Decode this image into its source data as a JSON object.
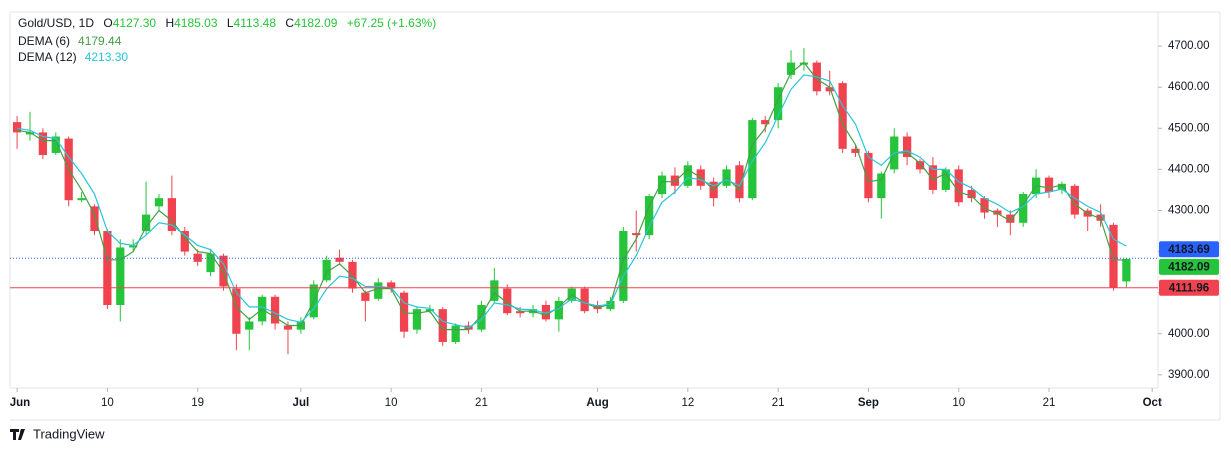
{
  "chart_data": {
    "type": "candlestick",
    "title": "Gold/USD, 1D",
    "header_labels": [
      "O",
      "H",
      "L",
      "C"
    ],
    "change": "+67.25 (+1.63%)",
    "up_color": "#26c43a",
    "down_color": "#f0434f",
    "xlim": [
      -0.55,
      88.45
    ],
    "xticks": [
      {
        "value": 0,
        "label": "Jun"
      },
      {
        "value": 7,
        "label": "10"
      },
      {
        "value": 14,
        "label": "19"
      },
      {
        "value": 22,
        "label": "Jul"
      },
      {
        "value": 29,
        "label": "10"
      },
      {
        "value": 36,
        "label": "21"
      },
      {
        "value": 45,
        "label": "Aug"
      },
      {
        "value": 52,
        "label": "12"
      },
      {
        "value": 59,
        "label": "21"
      },
      {
        "value": 66,
        "label": "Sep"
      },
      {
        "value": 73,
        "label": "10"
      },
      {
        "value": 80,
        "label": "21"
      },
      {
        "value": 88,
        "label": "Oct"
      }
    ],
    "ylim": [
      3868,
      4783
    ],
    "yticks": [
      {
        "value": 3900,
        "label": "3900.00"
      },
      {
        "value": 4000,
        "label": "4000.00"
      },
      {
        "value": 4100,
        "label": "4100.00"
      },
      {
        "value": 4200,
        "label": "4200.00"
      },
      {
        "value": 4300,
        "label": "4300.00"
      },
      {
        "value": 4400,
        "label": "4400.00"
      },
      {
        "value": 4500,
        "label": "4500.00"
      },
      {
        "value": 4600,
        "label": "4600.00"
      },
      {
        "value": 4700,
        "label": "4700.00"
      }
    ],
    "open": [
      4515,
      4485,
      4490,
      4440,
      4475,
      4325,
      4310,
      4250,
      4070,
      4210,
      4250,
      4310,
      4330,
      4250,
      4195,
      4150,
      4190,
      4110,
      4010,
      4030,
      4090,
      4020,
      4010,
      4040,
      4130,
      4185,
      4175,
      4100,
      4085,
      4125,
      4100,
      4010,
      4055,
      4060,
      3980,
      4020,
      4010,
      4080,
      4110,
      4055,
      4050,
      4070,
      4035,
      4080,
      4110,
      4070,
      4060,
      4080,
      4245,
      4240,
      4340,
      4385,
      4360,
      4400,
      4370,
      4360,
      4410,
      4330,
      4520,
      4520,
      4630,
      4655,
      4660,
      4600,
      4610,
      4450,
      4440,
      4330,
      4400,
      4480,
      4420,
      4410,
      4350,
      4400,
      4350,
      4330,
      4300,
      4290,
      4270,
      4340,
      4380,
      4350,
      4360,
      4300,
      4290,
      4265,
      4127.3
    ],
    "high": [
      4530,
      4540,
      4500,
      4490,
      4480,
      4345,
      4315,
      4255,
      4230,
      4230,
      4370,
      4340,
      4385,
      4260,
      4205,
      4205,
      4195,
      4120,
      4040,
      4095,
      4095,
      4030,
      4040,
      4130,
      4190,
      4205,
      4180,
      4105,
      4135,
      4130,
      4105,
      4065,
      4070,
      4065,
      4025,
      4030,
      4080,
      4160,
      4120,
      4065,
      4070,
      4080,
      4090,
      4115,
      4115,
      4080,
      4090,
      4260,
      4300,
      4340,
      4395,
      4405,
      4420,
      4410,
      4380,
      4410,
      4420,
      4525,
      4530,
      4610,
      4690,
      4695,
      4665,
      4640,
      4615,
      4460,
      4445,
      4395,
      4500,
      4490,
      4425,
      4430,
      4405,
      4410,
      4360,
      4335,
      4305,
      4300,
      4345,
      4400,
      4385,
      4370,
      4365,
      4305,
      4315,
      4270,
      4185.03
    ],
    "low": [
      4450,
      4470,
      4425,
      4435,
      4310,
      4320,
      4240,
      4060,
      4030,
      4200,
      4240,
      4300,
      4240,
      4190,
      4165,
      4140,
      4105,
      3960,
      3960,
      4020,
      4010,
      3950,
      4000,
      4035,
      4125,
      4170,
      4100,
      4030,
      4080,
      4100,
      3990,
      4000,
      4050,
      3970,
      3975,
      4000,
      4005,
      4075,
      4045,
      4040,
      4040,
      4030,
      4005,
      4075,
      4050,
      4050,
      4055,
      4075,
      4200,
      4230,
      4330,
      4340,
      4355,
      4350,
      4310,
      4355,
      4320,
      4325,
      4490,
      4500,
      4620,
      4640,
      4580,
      4580,
      4440,
      4430,
      4320,
      4280,
      4390,
      4410,
      4390,
      4340,
      4345,
      4310,
      4320,
      4280,
      4260,
      4240,
      4260,
      4330,
      4330,
      4340,
      4280,
      4250,
      4260,
      4105,
      4113.48
    ],
    "close": [
      4490,
      4490,
      4435,
      4480,
      4325,
      4330,
      4250,
      4070,
      4210,
      4215,
      4290,
      4330,
      4250,
      4200,
      4175,
      4195,
      4115,
      4000,
      4030,
      4090,
      4025,
      4010,
      4030,
      4120,
      4180,
      4175,
      4110,
      4080,
      4125,
      4110,
      4005,
      4060,
      4060,
      3980,
      4020,
      4010,
      4070,
      4130,
      4050,
      4050,
      4060,
      4035,
      4080,
      4110,
      4055,
      4060,
      4080,
      4250,
      4240,
      4335,
      4385,
      4360,
      4410,
      4360,
      4330,
      4400,
      4330,
      4520,
      4510,
      4600,
      4660,
      4660,
      4590,
      4590,
      4450,
      4440,
      4330,
      4390,
      4480,
      4430,
      4400,
      4350,
      4400,
      4320,
      4330,
      4295,
      4290,
      4270,
      4340,
      4380,
      4345,
      4365,
      4290,
      4285,
      4275,
      4112,
      4182.09
    ],
    "series": [
      {
        "name": "DEMA (6)",
        "color": "#43a047",
        "values": [
          4495,
          4490,
          4470,
          4470,
          4400,
          4350,
          4290,
          4180,
          4180,
          4200,
          4260,
          4300,
          4275,
          4235,
          4200,
          4195,
          4150,
          4065,
          4035,
          4060,
          4040,
          4020,
          4020,
          4080,
          4150,
          4170,
          4140,
          4100,
          4110,
          4110,
          4050,
          4050,
          4055,
          4010,
          4010,
          4010,
          4045,
          4100,
          4075,
          4055,
          4055,
          4045,
          4065,
          4095,
          4075,
          4063,
          4072,
          4180,
          4230,
          4310,
          4370,
          4370,
          4400,
          4380,
          4350,
          4380,
          4350,
          4460,
          4500,
          4570,
          4635,
          4660,
          4620,
          4600,
          4510,
          4460,
          4370,
          4375,
          4440,
          4440,
          4415,
          4375,
          4390,
          4345,
          4335,
          4305,
          4293,
          4275,
          4315,
          4360,
          4355,
          4362,
          4315,
          4293,
          4280,
          4180,
          4179.44
        ]
      },
      {
        "name": "DEMA (12)",
        "color": "#26c6da",
        "values": [
          4500,
          4495,
          4480,
          4475,
          4430,
          4390,
          4340,
          4250,
          4220,
          4215,
          4240,
          4270,
          4265,
          4240,
          4215,
          4205,
          4170,
          4100,
          4065,
          4065,
          4050,
          4035,
          4028,
          4060,
          4110,
          4140,
          4135,
          4115,
          4115,
          4112,
          4075,
          4065,
          4062,
          4030,
          4022,
          4015,
          4035,
          4075,
          4070,
          4060,
          4058,
          4050,
          4062,
          4085,
          4075,
          4068,
          4072,
          4140,
          4190,
          4260,
          4320,
          4345,
          4380,
          4375,
          4360,
          4375,
          4360,
          4420,
          4465,
          4530,
          4595,
          4630,
          4625,
          4615,
          4555,
          4510,
          4430,
          4410,
          4440,
          4445,
          4430,
          4400,
          4400,
          4370,
          4355,
          4330,
          4315,
          4295,
          4310,
          4340,
          4345,
          4352,
          4330,
          4310,
          4295,
          4230,
          4213.3
        ]
      }
    ],
    "price_lines": [
      {
        "value": 4183.69,
        "color": "#2962ff",
        "style": "dotted"
      },
      {
        "value": 4111.96,
        "color": "#f0434f",
        "style": "solid"
      }
    ],
    "branding": "TradingView"
  }
}
